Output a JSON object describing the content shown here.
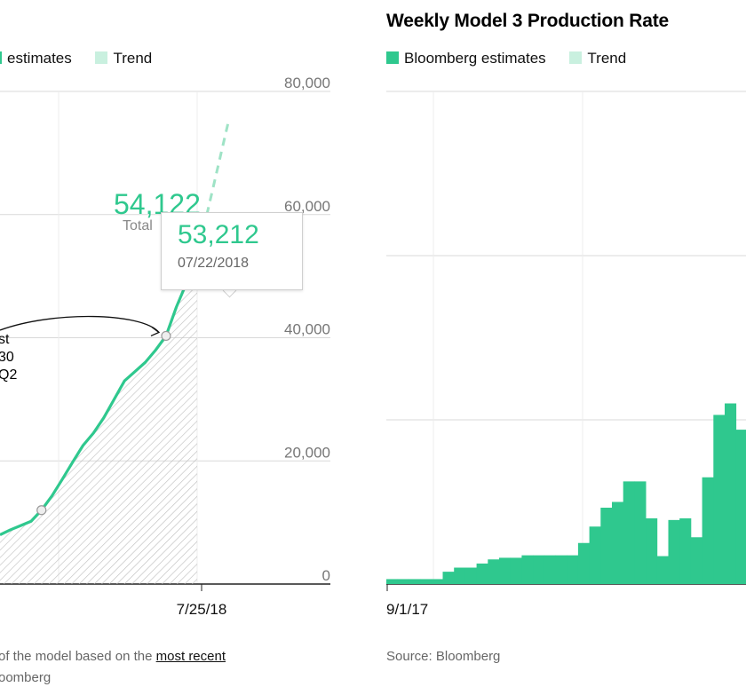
{
  "left": {
    "legend": [
      {
        "label": "estimates",
        "color": "#2fc88e"
      },
      {
        "label": "Trend",
        "color": "#c9f0df"
      }
    ],
    "annotation_value": "54,122",
    "annotation_label": "Total",
    "callout_lines": [
      "st",
      "30",
      "Q2"
    ],
    "tooltip": {
      "value": "53,212",
      "date": "07/22/2018"
    },
    "footer_text": "of the model based on the",
    "footer_link": "most recent",
    "source": "oomberg"
  },
  "right": {
    "title": "Weekly Model 3 Production Rate",
    "legend": [
      {
        "label": "Bloomberg estimates",
        "color": "#2fc88e"
      },
      {
        "label": "Trend",
        "color": "#c9f0df"
      }
    ],
    "source": "Source: Bloomberg"
  },
  "chart_data": [
    {
      "type": "line",
      "y_ticks": [
        "80,000",
        "60,000",
        "40,000",
        "20,000",
        "0"
      ],
      "x_ticks": [
        "7/25/18"
      ],
      "ylim": [
        0,
        80000
      ],
      "grid": true,
      "series": [
        {
          "name": "estimates",
          "x": [
            "2018-03-11",
            "2018-03-18",
            "2018-03-25",
            "2018-04-01",
            "2018-04-08",
            "2018-04-15",
            "2018-04-22",
            "2018-04-29",
            "2018-05-06",
            "2018-05-13",
            "2018-05-20",
            "2018-05-27",
            "2018-06-03",
            "2018-06-10",
            "2018-06-17",
            "2018-06-24",
            "2018-07-01",
            "2018-07-08",
            "2018-07-15",
            "2018-07-22"
          ],
          "y": [
            8000,
            8800,
            9500,
            10200,
            12000,
            14300,
            17000,
            19800,
            22500,
            24500,
            27000,
            30000,
            33000,
            34500,
            36000,
            38000,
            40300,
            45000,
            49000,
            53212
          ]
        },
        {
          "name": "Trend",
          "x": [
            "2018-07-22",
            "2018-08-12"
          ],
          "y": [
            53212,
            75000
          ]
        }
      ],
      "labeled_points": [
        {
          "x": "2018-04-08",
          "y": 12000
        },
        {
          "x": "2018-07-01",
          "y": 40300
        }
      ]
    },
    {
      "type": "bar",
      "title": "Weekly Model 3 Production Rate",
      "x_ticks": [
        "9/1/17"
      ],
      "series": [
        {
          "name": "Bloomberg estimates",
          "values": [
            60,
            60,
            60,
            60,
            60,
            150,
            200,
            200,
            250,
            300,
            320,
            320,
            350,
            350,
            350,
            350,
            350,
            500,
            700,
            930,
            1000,
            1250,
            1250,
            800,
            340,
            780,
            800,
            570,
            1300,
            2060,
            2200,
            1880
          ]
        }
      ]
    }
  ]
}
